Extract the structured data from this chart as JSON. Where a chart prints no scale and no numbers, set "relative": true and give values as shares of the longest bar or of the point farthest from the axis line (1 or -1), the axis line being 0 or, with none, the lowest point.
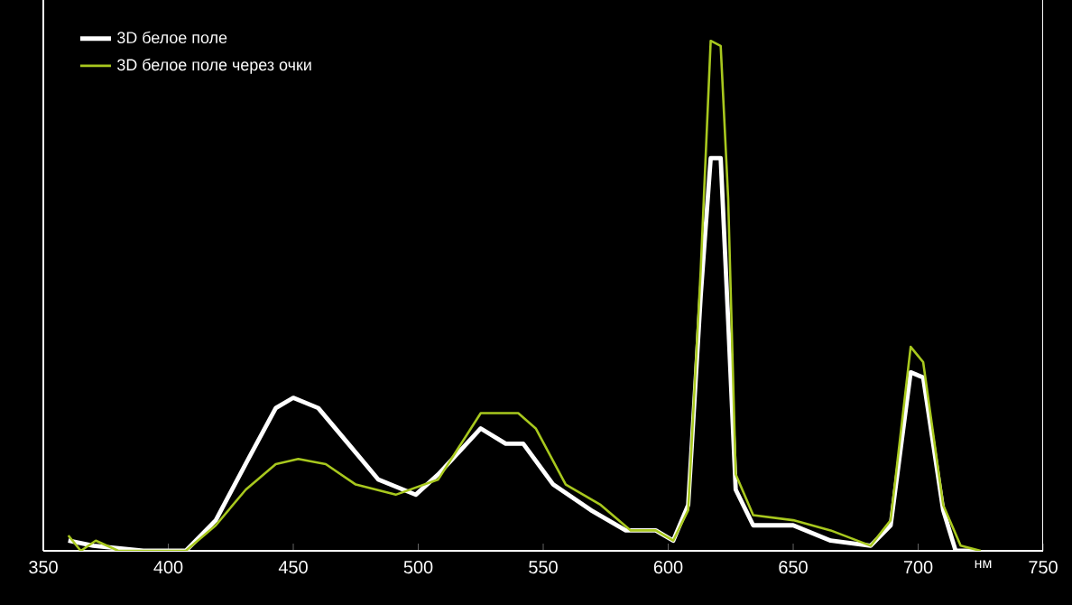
{
  "chart_data": {
    "type": "line",
    "relative": true,
    "xlabel": "нм",
    "xlim": [
      350,
      750
    ],
    "xticks": [
      350,
      400,
      450,
      500,
      550,
      600,
      650,
      700,
      750
    ],
    "legend": "top left",
    "grid": false,
    "marker": "none",
    "line_style": "solid",
    "series": [
      {
        "name": "3D белое поле",
        "color": "#ffffff",
        "x": [
          360,
          370,
          390,
          407,
          419,
          432,
          443,
          450,
          460,
          472,
          484,
          499,
          508,
          525,
          535,
          542,
          554,
          569,
          583,
          595,
          602,
          608,
          613,
          617,
          621,
          624,
          627,
          634,
          650,
          665,
          681,
          689,
          697,
          702,
          710,
          715,
          722
        ],
        "values": [
          0.02,
          0.01,
          0,
          0,
          0.06,
          0.18,
          0.28,
          0.3,
          0.28,
          0.21,
          0.14,
          0.11,
          0.15,
          0.24,
          0.21,
          0.21,
          0.13,
          0.08,
          0.04,
          0.04,
          0.02,
          0.09,
          0.5,
          0.77,
          0.77,
          0.45,
          0.12,
          0.05,
          0.05,
          0.02,
          0.01,
          0.05,
          0.35,
          0.34,
          0.08,
          0,
          0
        ]
      },
      {
        "name": "3D белое поле через очки",
        "color": "#a8c81e",
        "x": [
          360,
          365,
          371,
          380,
          407,
          419,
          431,
          443,
          452,
          463,
          475,
          491,
          508,
          525,
          540,
          547,
          559,
          573,
          585,
          595,
          602,
          608,
          613,
          617,
          621,
          624,
          627,
          634,
          650,
          665,
          681,
          689,
          697,
          702,
          710,
          717,
          725
        ],
        "values": [
          0.03,
          0,
          0.02,
          0,
          0,
          0.05,
          0.12,
          0.17,
          0.18,
          0.17,
          0.13,
          0.11,
          0.14,
          0.27,
          0.27,
          0.24,
          0.13,
          0.09,
          0.04,
          0.04,
          0.02,
          0.08,
          0.55,
          1.0,
          0.99,
          0.69,
          0.15,
          0.07,
          0.06,
          0.04,
          0.01,
          0.06,
          0.4,
          0.37,
          0.09,
          0.01,
          0
        ]
      }
    ]
  }
}
